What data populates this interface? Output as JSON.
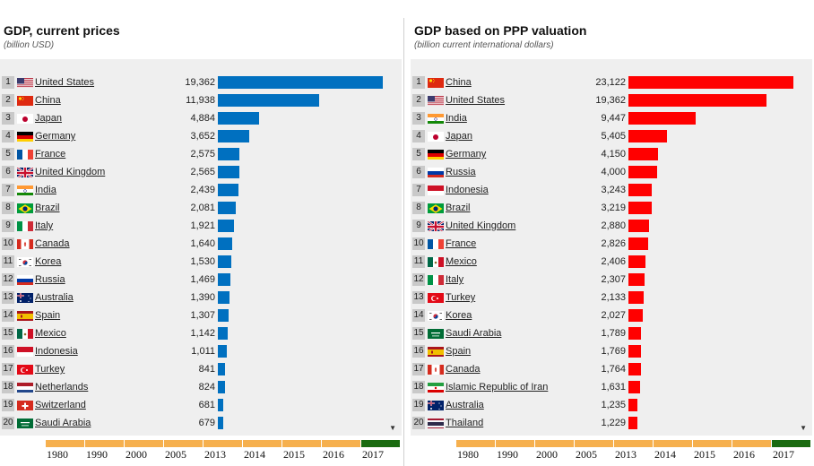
{
  "chart_data": [
    {
      "type": "bar",
      "orientation": "horizontal",
      "title": "GDP, current prices",
      "subtitle": "(billion USD)",
      "bar_color": "#0070c0",
      "categories": [
        "United States",
        "China",
        "Japan",
        "Germany",
        "France",
        "United Kingdom",
        "India",
        "Brazil",
        "Italy",
        "Canada",
        "Korea",
        "Russia",
        "Australia",
        "Spain",
        "Mexico",
        "Indonesia",
        "Turkey",
        "Netherlands",
        "Switzerland",
        "Saudi Arabia"
      ],
      "flags": [
        "us",
        "cn",
        "jp",
        "de",
        "fr",
        "gb",
        "in",
        "br",
        "it",
        "ca",
        "kr",
        "ru",
        "au",
        "es",
        "mx",
        "id",
        "tr",
        "nl",
        "ch",
        "sa"
      ],
      "values": [
        19362,
        11938,
        4884,
        3652,
        2575,
        2565,
        2439,
        2081,
        1921,
        1640,
        1530,
        1469,
        1390,
        1307,
        1142,
        1011,
        841,
        824,
        681,
        679
      ],
      "value_labels": [
        "19,362",
        "11,938",
        "4,884",
        "3,652",
        "2,575",
        "2,565",
        "2,439",
        "2,081",
        "1,921",
        "1,640",
        "1,530",
        "1,469",
        "1,390",
        "1,307",
        "1,142",
        "1,011",
        "841",
        "824",
        "681",
        "679"
      ],
      "xlim": [
        0,
        19362
      ]
    },
    {
      "type": "bar",
      "orientation": "horizontal",
      "title": "GDP based on PPP valuation",
      "subtitle": "(billion current international dollars)",
      "bar_color": "#ff0000",
      "categories": [
        "China",
        "United States",
        "India",
        "Japan",
        "Germany",
        "Russia",
        "Indonesia",
        "Brazil",
        "United Kingdom",
        "France",
        "Mexico",
        "Italy",
        "Turkey",
        "Korea",
        "Saudi Arabia",
        "Spain",
        "Canada",
        "Islamic Republic of Iran",
        "Australia",
        "Thailand"
      ],
      "flags": [
        "cn",
        "us",
        "in",
        "jp",
        "de",
        "ru",
        "id",
        "br",
        "gb",
        "fr",
        "mx",
        "it",
        "tr",
        "kr",
        "sa",
        "es",
        "ca",
        "ir",
        "au",
        "th"
      ],
      "values": [
        23122,
        19362,
        9447,
        5405,
        4150,
        4000,
        3243,
        3219,
        2880,
        2826,
        2406,
        2307,
        2133,
        2027,
        1789,
        1769,
        1764,
        1631,
        1235,
        1229
      ],
      "value_labels": [
        "23,122",
        "19,362",
        "9,447",
        "5,405",
        "4,150",
        "4,000",
        "3,243",
        "3,219",
        "2,880",
        "2,826",
        "2,406",
        "2,307",
        "2,133",
        "2,027",
        "1,789",
        "1,769",
        "1,764",
        "1,631",
        "1,235",
        "1,229"
      ],
      "xlim": [
        0,
        23122
      ]
    }
  ],
  "timeline": {
    "years": [
      "1980",
      "1990",
      "2000",
      "2005",
      "2013",
      "2014",
      "2015",
      "2016",
      "2017"
    ],
    "active_year": "2017",
    "inactive_color": "#f6b04e",
    "active_color": "#1a6b10"
  }
}
